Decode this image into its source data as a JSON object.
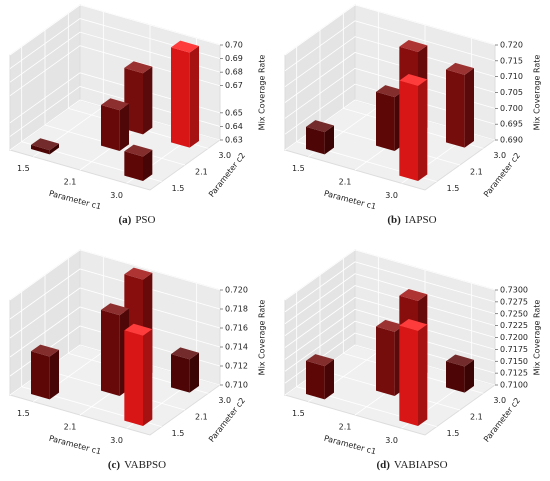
{
  "chart_data": [
    {
      "type": "bar3d",
      "caption_label": "(a)",
      "title": "PSO",
      "xlabel": "Parameter c1",
      "ylabel": "Parameter c2",
      "zlabel": "Mix Coverage Rate",
      "xcategories": [
        "1.5",
        "2.1",
        "3.0"
      ],
      "ycategories": [
        "1.5",
        "2.1",
        "3.0"
      ],
      "bars": {
        "c1": [
          "1.5",
          "2.1",
          "2.1",
          "3.0",
          "3.0"
        ],
        "c2": [
          "1.5",
          "3.0",
          "2.1",
          "1.5",
          "3.0"
        ],
        "values": [
          0.633,
          0.675,
          0.66,
          0.648,
          0.7
        ],
        "colors": [
          "#5a0606",
          "#8b0f0f",
          "#7a0a0a",
          "#6e0808",
          "#ff1a1a"
        ]
      },
      "zlim": [
        0.63,
        0.7
      ],
      "zticks": [
        0.63,
        0.64,
        0.65,
        0.67,
        0.68,
        0.69,
        {
          "value": 0.7,
          "label": "0.70"
        }
      ]
    },
    {
      "type": "bar3d",
      "caption_label": "(b)",
      "title": "IAPSO",
      "xlabel": "Parameter c1",
      "ylabel": "Parameter c2",
      "zlabel": "Mix Coverage Rate",
      "xcategories": [
        "1.5",
        "2.1",
        "3.0"
      ],
      "ycategories": [
        "1.5",
        "2.1",
        "3.0"
      ],
      "bars": {
        "c1": [
          "1.5",
          "2.1",
          "2.1",
          "3.0",
          "3.0"
        ],
        "c2": [
          "1.5",
          "3.0",
          "2.1",
          "1.5",
          "3.0"
        ],
        "values": [
          0.697,
          0.716,
          0.707,
          0.72,
          0.713
        ],
        "colors": [
          "#5a0606",
          "#a01010",
          "#6e0808",
          "#ff1a1a",
          "#8b0f0f"
        ]
      },
      "zlim": [
        0.69,
        0.72
      ],
      "zticks": [
        {
          "value": 0.69,
          "label": "0.690"
        },
        0.695,
        {
          "value": 0.7,
          "label": "0.700"
        },
        0.705,
        {
          "value": 0.71,
          "label": "0.710"
        },
        0.715,
        {
          "value": 0.72,
          "label": "0.720"
        }
      ]
    },
    {
      "type": "bar3d",
      "caption_label": "(c)",
      "title": "VABPSO",
      "xlabel": "Parameter c1",
      "ylabel": "Parameter c2",
      "zlabel": "Mix Coverage Rate",
      "xcategories": [
        "1.5",
        "2.1",
        "3.0"
      ],
      "ycategories": [
        "1.5",
        "2.1",
        "3.0"
      ],
      "bars": {
        "c1": [
          "1.5",
          "2.1",
          "2.1",
          "3.0",
          "3.0"
        ],
        "c2": [
          "1.5",
          "3.0",
          "2.1",
          "1.5",
          "3.0"
        ],
        "values": [
          0.7145,
          0.7205,
          0.7185,
          0.7195,
          0.7135
        ],
        "colors": [
          "#6e0808",
          "#a01010",
          "#7a0a0a",
          "#ff1a1a",
          "#5a0606"
        ]
      },
      "zlim": [
        0.71,
        0.72
      ],
      "zticks": [
        {
          "value": 0.71,
          "label": "0.710"
        },
        0.712,
        0.714,
        0.716,
        0.718,
        {
          "value": 0.72,
          "label": "0.720"
        }
      ]
    },
    {
      "type": "bar3d",
      "caption_label": "(d)",
      "title": "VABIAPSO",
      "xlabel": "Parameter c1",
      "ylabel": "Parameter c2",
      "zlabel": "Mix Coverage Rate",
      "xcategories": [
        "1.5",
        "2.1",
        "3.0"
      ],
      "ycategories": [
        "1.5",
        "2.1",
        "3.0"
      ],
      "bars": {
        "c1": [
          "1.5",
          "2.1",
          "2.1",
          "3.0",
          "3.0"
        ],
        "c2": [
          "1.5",
          "3.0",
          "2.1",
          "1.5",
          "3.0"
        ],
        "values": [
          0.717,
          0.7265,
          0.7235,
          0.73,
          0.7155
        ],
        "colors": [
          "#6e0808",
          "#a01010",
          "#8b0f0f",
          "#ff1a1a",
          "#5a0606"
        ]
      },
      "zlim": [
        0.71,
        0.73
      ],
      "zticks": [
        {
          "value": 0.71,
          "label": "0.7100"
        },
        0.7125,
        {
          "value": 0.715,
          "label": "0.7150"
        },
        0.7175,
        {
          "value": 0.72,
          "label": "0.7200"
        },
        0.7225,
        {
          "value": 0.725,
          "label": "0.7250"
        },
        0.7275,
        {
          "value": 0.73,
          "label": "0.7300"
        }
      ]
    }
  ]
}
